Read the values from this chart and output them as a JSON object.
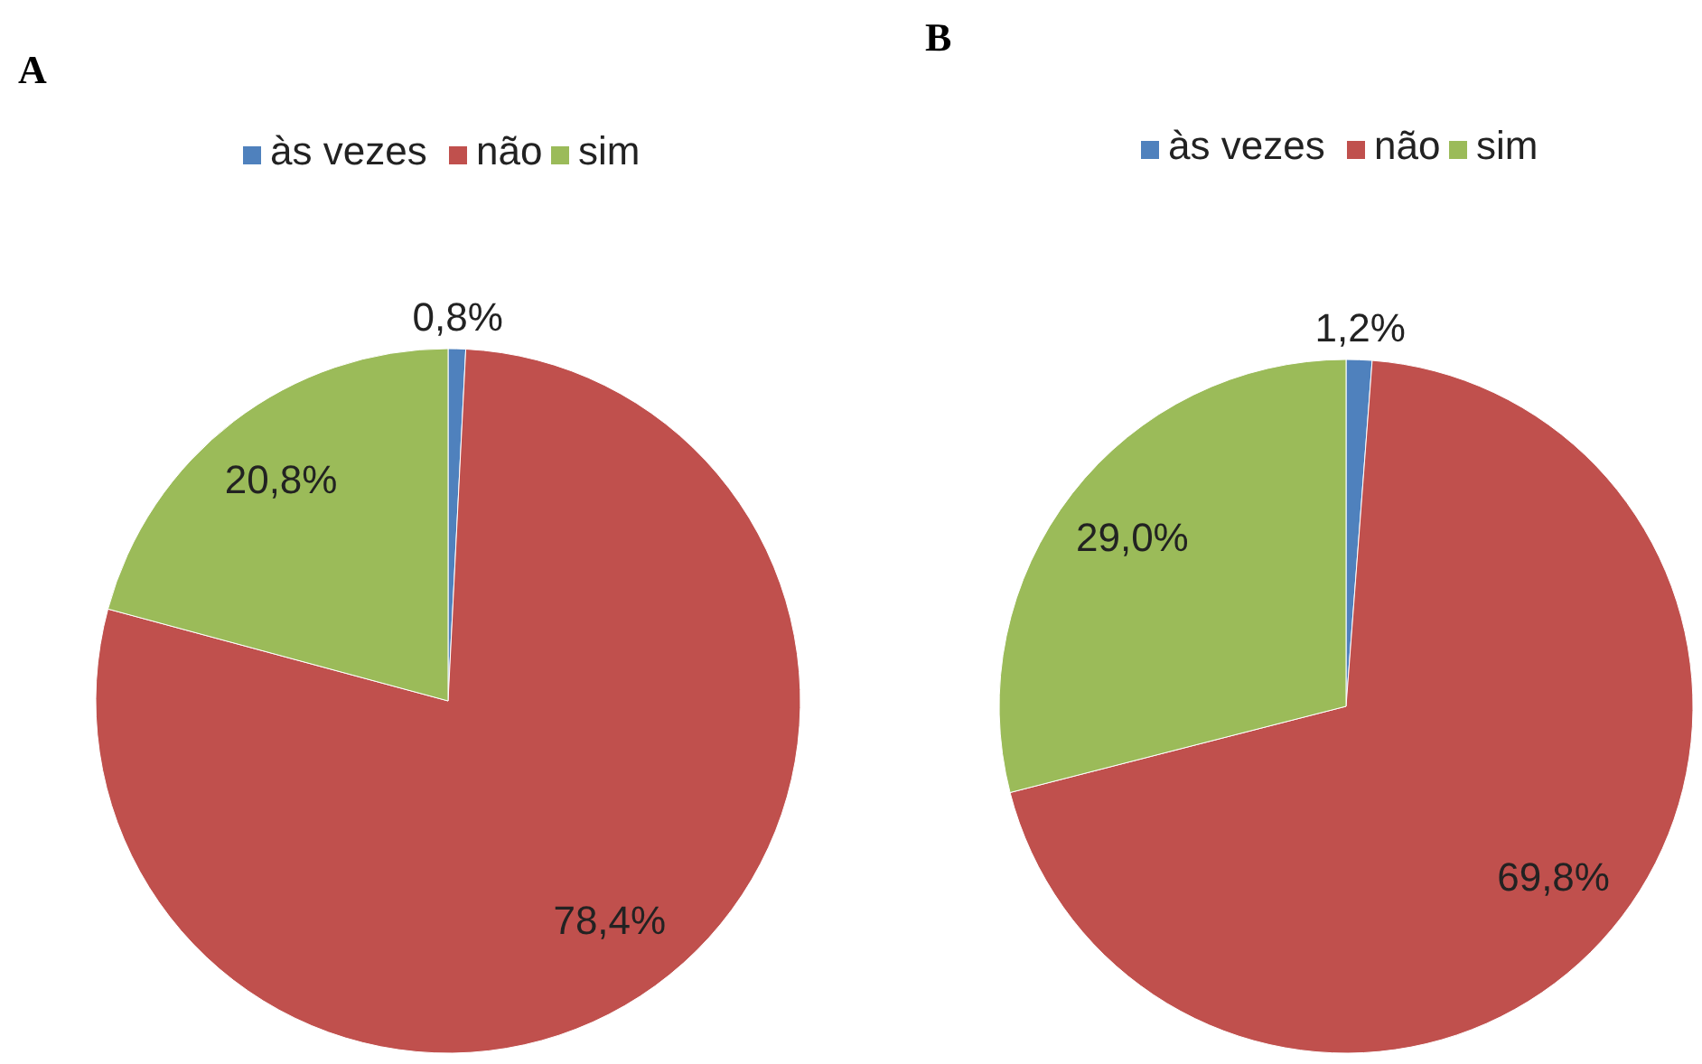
{
  "chart_data": [
    {
      "type": "pie",
      "title": "A",
      "categories": [
        "às vezes",
        "não",
        "sim"
      ],
      "values": [
        0.8,
        78.4,
        20.8
      ],
      "colors": [
        "#4f81bd",
        "#c0504d",
        "#9bbb59"
      ],
      "value_labels": [
        "0,8%",
        "78,4%",
        "20,8%"
      ],
      "legend": "top"
    },
    {
      "type": "pie",
      "title": "B",
      "categories": [
        "às vezes",
        "não",
        "sim"
      ],
      "values": [
        1.2,
        69.8,
        29.0
      ],
      "colors": [
        "#4f81bd",
        "#c0504d",
        "#9bbb59"
      ],
      "value_labels": [
        "1,2%",
        "69,8%",
        "29,0%"
      ],
      "legend": "top"
    }
  ]
}
